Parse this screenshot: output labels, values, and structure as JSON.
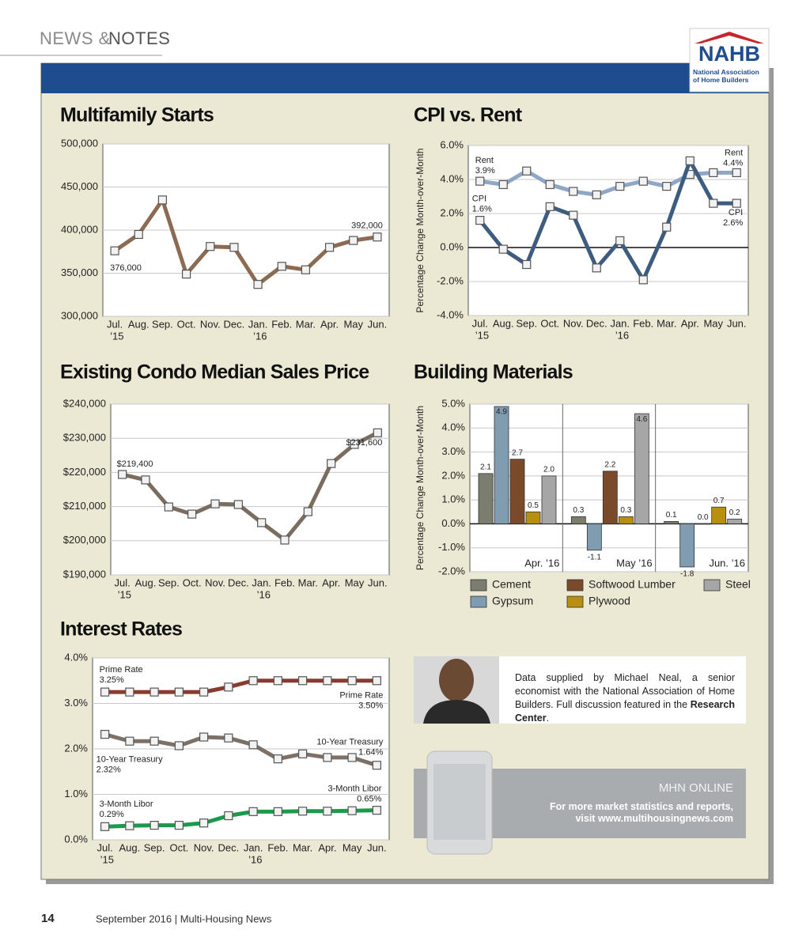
{
  "header": {
    "section": "NEWS &",
    "section_strong": "NOTES",
    "logo": "NAHB",
    "logo_sub": "National Association of Home Builders"
  },
  "chart_data": [
    {
      "type": "line",
      "title": "Multifamily Starts",
      "categories": [
        "Jul.",
        "Aug.",
        "Sep.",
        "Oct.",
        "Nov.",
        "Dec.",
        "Jan.",
        "Feb.",
        "Mar.",
        "Apr.",
        "May",
        "Jun."
      ],
      "category_years": [
        "’15",
        null,
        null,
        null,
        null,
        null,
        "’16",
        null,
        null,
        null,
        null,
        null
      ],
      "series": [
        {
          "name": "Multifamily Starts",
          "color": "#8c6b52",
          "values": [
            376000,
            395000,
            435000,
            349000,
            381000,
            380000,
            337000,
            358000,
            354000,
            380000,
            388000,
            392000
          ],
          "value_labels": [
            "376,000",
            null,
            null,
            null,
            null,
            null,
            null,
            null,
            null,
            null,
            null,
            "392,000"
          ]
        }
      ],
      "ylim": [
        300000,
        500000
      ],
      "yticks": [
        {
          "value": 300000,
          "label": "300,000"
        },
        {
          "value": 350000,
          "label": "350,000"
        },
        {
          "value": 400000,
          "label": "400,000"
        },
        {
          "value": 450000,
          "label": "450,000"
        },
        {
          "value": 500000,
          "label": "500,000"
        }
      ],
      "grid": true
    },
    {
      "type": "line",
      "title": "CPI vs. Rent",
      "y_label": "Percentage Change Month-over-Month",
      "categories": [
        "Jul.",
        "Aug.",
        "Sep.",
        "Oct.",
        "Nov.",
        "Dec.",
        "Jan.",
        "Feb.",
        "Mar.",
        "Apr.",
        "May",
        "Jun."
      ],
      "category_years": [
        "’15",
        null,
        null,
        null,
        null,
        null,
        "’16",
        null,
        null,
        null,
        null,
        null
      ],
      "series": [
        {
          "name": "Rent",
          "color": "#8ea7c6",
          "values": [
            3.9,
            3.7,
            4.5,
            3.7,
            3.3,
            3.1,
            3.6,
            3.9,
            3.6,
            4.3,
            4.4,
            4.4
          ],
          "value_labels": [
            "3.9%",
            null,
            null,
            null,
            null,
            null,
            null,
            null,
            null,
            null,
            null,
            "4.4%"
          ]
        },
        {
          "name": "CPI",
          "color": "#3e5c80",
          "values": [
            1.6,
            -0.1,
            -1.0,
            2.4,
            1.9,
            -1.2,
            0.4,
            -1.9,
            1.2,
            5.1,
            2.6,
            2.6
          ],
          "value_labels": [
            "1.6%",
            null,
            null,
            null,
            null,
            null,
            null,
            null,
            null,
            null,
            null,
            "2.6%"
          ]
        }
      ],
      "ylim": [
        -4,
        6
      ],
      "yticks": [
        {
          "value": -4,
          "label": "-4.0%"
        },
        {
          "value": -2,
          "label": "-2.0%"
        },
        {
          "value": 0,
          "label": "0.0%"
        },
        {
          "value": 2,
          "label": "2.0%"
        },
        {
          "value": 4,
          "label": "4.0%"
        },
        {
          "value": 6,
          "label": "6.0%"
        }
      ],
      "grid": true,
      "zero_line": true
    },
    {
      "type": "line",
      "title": "Existing Condo Median Sales Price",
      "categories": [
        "Jul.",
        "Aug.",
        "Sep.",
        "Oct.",
        "Nov.",
        "Dec.",
        "Jan.",
        "Feb.",
        "Mar.",
        "Apr.",
        "May",
        "Jun."
      ],
      "category_years": [
        "’15",
        null,
        null,
        null,
        null,
        null,
        "’16",
        null,
        null,
        null,
        null,
        null
      ],
      "series": [
        {
          "name": "Existing Condo Median Sales Price",
          "color": "#7a6c5e",
          "values": [
            219400,
            217800,
            209900,
            207800,
            210800,
            210600,
            205300,
            200200,
            208500,
            222600,
            228200,
            231600
          ],
          "value_labels": [
            "$219,400",
            null,
            null,
            null,
            null,
            null,
            null,
            null,
            null,
            null,
            null,
            "$231,600"
          ]
        }
      ],
      "ylim": [
        190000,
        240000
      ],
      "yticks": [
        {
          "value": 190000,
          "label": "$190,000"
        },
        {
          "value": 200000,
          "label": "$200,000"
        },
        {
          "value": 210000,
          "label": "$210,000"
        },
        {
          "value": 220000,
          "label": "$220,000"
        },
        {
          "value": 230000,
          "label": "$230,000"
        },
        {
          "value": 240000,
          "label": "$240,000"
        }
      ],
      "grid": true
    },
    {
      "type": "bar",
      "title": "Building Materials",
      "y_label": "Percentage Change Month-over-Month",
      "categories": [
        "Apr. ’16",
        "May ’16",
        "Jun. ’16"
      ],
      "series": [
        {
          "name": "Cement",
          "color": "#7b7d6f",
          "values": [
            2.1,
            0.3,
            0.1
          ],
          "value_labels": [
            "2.1",
            "0.3",
            "0.1"
          ]
        },
        {
          "name": "Gypsum",
          "color": "#7f9cb1",
          "values": [
            4.9,
            -1.1,
            -1.8
          ],
          "value_labels": [
            "4.9",
            "-1.1",
            "-1.8"
          ]
        },
        {
          "name": "Softwood Lumber",
          "color": "#7a4a2a",
          "values": [
            2.7,
            2.2,
            0.0
          ],
          "value_labels": [
            "2.7",
            "2.2",
            "0.0"
          ]
        },
        {
          "name": "Plywood",
          "color": "#b8900f",
          "values": [
            0.5,
            0.3,
            0.7
          ],
          "value_labels": [
            "0.5",
            "0.3",
            "0.7"
          ]
        },
        {
          "name": "Steel",
          "color": "#a6a6a6",
          "values": [
            2.0,
            4.6,
            0.2
          ],
          "value_labels": [
            "2.0",
            "4.6",
            "0.2"
          ]
        }
      ],
      "ylim": [
        -2,
        5
      ],
      "yticks": [
        {
          "value": -2,
          "label": "-2.0%"
        },
        {
          "value": -1,
          "label": "-1.0%"
        },
        {
          "value": 0,
          "label": "0.0%"
        },
        {
          "value": 1,
          "label": "1.0%"
        },
        {
          "value": 2,
          "label": "2.0%"
        },
        {
          "value": 3,
          "label": "3.0%"
        },
        {
          "value": 4,
          "label": "4.0%"
        },
        {
          "value": 5,
          "label": "5.0%"
        }
      ],
      "grid": true,
      "zero_line": true
    },
    {
      "type": "line",
      "title": "Interest Rates",
      "categories": [
        "Jul.",
        "Aug.",
        "Sep.",
        "Oct.",
        "Nov.",
        "Dec.",
        "Jan.",
        "Feb.",
        "Mar.",
        "Apr.",
        "May",
        "Jun."
      ],
      "category_years": [
        "’15",
        null,
        null,
        null,
        null,
        null,
        "’16",
        null,
        null,
        null,
        null,
        null
      ],
      "series": [
        {
          "name": "Prime Rate",
          "color": "#8b3a2e",
          "values": [
            3.25,
            3.25,
            3.25,
            3.25,
            3.25,
            3.36,
            3.5,
            3.5,
            3.5,
            3.5,
            3.5,
            3.5
          ],
          "value_labels": [
            "3.25%",
            null,
            null,
            null,
            null,
            null,
            null,
            null,
            null,
            null,
            null,
            "3.50%"
          ]
        },
        {
          "name": "10-Year Treasury",
          "color": "#7d7066",
          "values": [
            2.32,
            2.17,
            2.17,
            2.07,
            2.26,
            2.24,
            2.09,
            1.78,
            1.89,
            1.81,
            1.81,
            1.64
          ],
          "value_labels": [
            "2.32%",
            null,
            null,
            null,
            null,
            null,
            null,
            null,
            null,
            null,
            null,
            "1.64%"
          ]
        },
        {
          "name": "3-Month Libor",
          "color": "#1a9a4a",
          "values": [
            0.29,
            0.31,
            0.32,
            0.32,
            0.37,
            0.53,
            0.62,
            0.62,
            0.63,
            0.63,
            0.64,
            0.65
          ],
          "value_labels": [
            "0.29%",
            null,
            null,
            null,
            null,
            null,
            null,
            null,
            null,
            null,
            null,
            "0.65%"
          ]
        }
      ],
      "ylim": [
        0,
        4
      ],
      "yticks": [
        {
          "value": 0,
          "label": "0.0%"
        },
        {
          "value": 1,
          "label": "1.0%"
        },
        {
          "value": 2,
          "label": "2.0%"
        },
        {
          "value": 3,
          "label": "3.0%"
        },
        {
          "value": 4,
          "label": "4.0%"
        }
      ],
      "grid": true
    }
  ],
  "info": {
    "text": "Data supplied by Michael Neal, a senior economist with the National Association of Home Builders. Full discussion featured in the",
    "link": "Research Center",
    "end": "."
  },
  "promo": {
    "title": "MHN ONLINE",
    "text": "For more market statistics and reports, visit www.multihousingnews.com"
  },
  "footer": {
    "page": "14",
    "issue": "September 2016 | Multi-Housing News"
  }
}
